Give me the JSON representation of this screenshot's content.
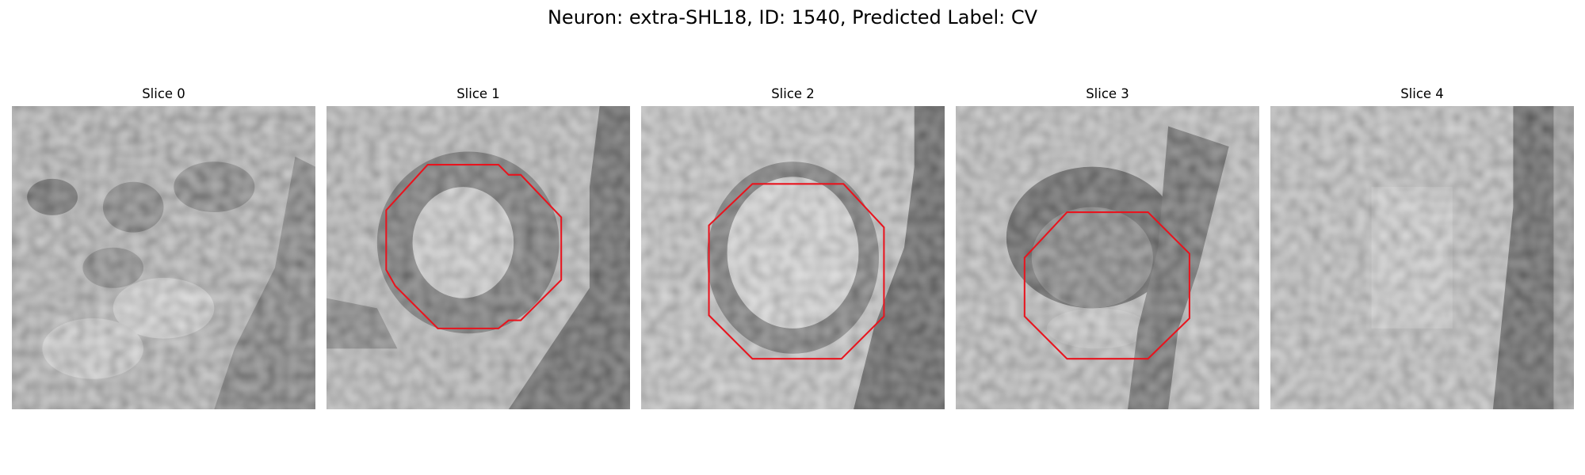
{
  "figure": {
    "title": "Neuron: extra-SHL18, ID: 1540, Predicted Label: CV"
  },
  "colors": {
    "outline": "#e8141e",
    "background": "#ffffff"
  },
  "slices": [
    {
      "title": "Slice 0",
      "has_outline": false
    },
    {
      "title": "Slice 1",
      "has_outline": true
    },
    {
      "title": "Slice 2",
      "has_outline": true
    },
    {
      "title": "Slice 3",
      "has_outline": true
    },
    {
      "title": "Slice 4",
      "has_outline": false
    }
  ]
}
